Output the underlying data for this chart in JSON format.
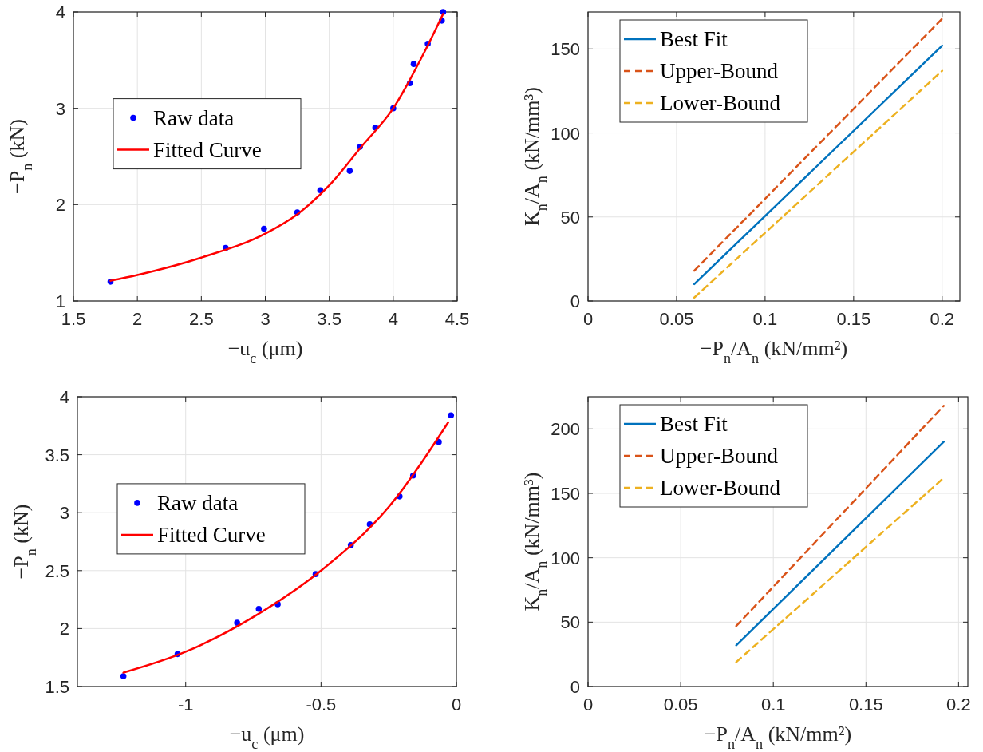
{
  "chart_data": [
    {
      "type": "scatter",
      "xlabel": "−u$_{c}$ (μm)",
      "ylabel": "−P$_{n}$ (kN)",
      "xlim": [
        1.5,
        4.5
      ],
      "ylim": [
        1,
        4
      ],
      "xticks": [
        1.5,
        2,
        2.5,
        3,
        3.5,
        4,
        4.5
      ],
      "yticks": [
        1,
        2,
        3,
        4
      ],
      "grid": true,
      "legend": "left",
      "series": [
        {
          "name": "Raw data",
          "marker": "circle",
          "color": "#0000ff",
          "x": [
            1.79,
            2.69,
            2.99,
            3.25,
            3.43,
            3.66,
            3.74,
            3.86,
            4.0,
            4.13,
            4.16,
            4.27,
            4.38,
            4.39
          ],
          "values": [
            1.2,
            1.55,
            1.75,
            1.92,
            2.15,
            2.35,
            2.6,
            2.8,
            3.0,
            3.26,
            3.46,
            3.67,
            3.91,
            4.0
          ]
        },
        {
          "name": "Fitted Curve",
          "type": "line",
          "line_style": "solid",
          "color": "#ff0000",
          "x": [
            1.79,
            2.0,
            2.5,
            3.0,
            3.25,
            3.5,
            3.75,
            4.0,
            4.25,
            4.39
          ],
          "values": [
            1.21,
            1.27,
            1.45,
            1.7,
            1.9,
            2.2,
            2.6,
            3.0,
            3.6,
            3.98
          ]
        }
      ]
    },
    {
      "type": "line",
      "xlabel": "−P$_{n}$/A$_{n}$ (kN/mm²)",
      "ylabel": "K$_{n}$/A$_{n}$ (kN/mm³)",
      "xlim": [
        0,
        0.21
      ],
      "ylim": [
        0,
        172
      ],
      "xticks": [
        0,
        0.05,
        0.1,
        0.15,
        0.2
      ],
      "yticks": [
        0,
        50,
        100,
        150
      ],
      "grid": true,
      "legend": "top left",
      "series": [
        {
          "name": "Best Fit",
          "line_style": "solid",
          "color": "#0072bd",
          "x": [
            0.06,
            0.2
          ],
          "values": [
            10,
            152
          ]
        },
        {
          "name": "Upper-Bound",
          "line_style": "dashed",
          "color": "#d95319",
          "x": [
            0.06,
            0.2
          ],
          "values": [
            18,
            168
          ]
        },
        {
          "name": "Lower-Bound",
          "line_style": "dashed",
          "color": "#edb120",
          "x": [
            0.06,
            0.2
          ],
          "values": [
            2,
            137
          ]
        }
      ]
    },
    {
      "type": "scatter",
      "xlabel": "−u$_{c}$ (μm)",
      "ylabel": "−P$_{n}$ (kN)",
      "xlim": [
        -1.4,
        0
      ],
      "ylim": [
        1.5,
        4
      ],
      "xticks": [
        -1,
        -0.5,
        0
      ],
      "yticks": [
        1.5,
        2,
        2.5,
        3,
        3.5,
        4
      ],
      "grid": true,
      "legend": "left",
      "series": [
        {
          "name": "Raw data",
          "marker": "circle",
          "color": "#0000ff",
          "x": [
            -1.23,
            -1.03,
            -0.81,
            -0.73,
            -0.66,
            -0.52,
            -0.39,
            -0.32,
            -0.21,
            -0.16,
            -0.065,
            -0.02
          ],
          "values": [
            1.59,
            1.78,
            2.05,
            2.17,
            2.21,
            2.47,
            2.72,
            2.9,
            3.14,
            3.32,
            3.61,
            3.84
          ]
        },
        {
          "name": "Fitted Curve",
          "type": "line",
          "line_style": "solid",
          "color": "#ff0000",
          "x": [
            -1.23,
            -1.0,
            -0.75,
            -0.5,
            -0.25,
            -0.03
          ],
          "values": [
            1.62,
            1.8,
            2.1,
            2.5,
            3.05,
            3.78
          ]
        }
      ]
    },
    {
      "type": "line",
      "xlabel": "−P$_{n}$/A$_{n}$ (kN/mm²)",
      "ylabel": "K$_{n}$/A$_{n}$ (kN/mm³)",
      "xlim": [
        0,
        0.205
      ],
      "ylim": [
        0,
        225
      ],
      "xticks": [
        0,
        0.05,
        0.1,
        0.15,
        0.2
      ],
      "yticks": [
        0,
        50,
        100,
        150,
        200
      ],
      "grid": true,
      "legend": "top left",
      "series": [
        {
          "name": "Best Fit",
          "line_style": "solid",
          "color": "#0072bd",
          "x": [
            0.08,
            0.192
          ],
          "values": [
            32,
            190
          ]
        },
        {
          "name": "Upper-Bound",
          "line_style": "dashed",
          "color": "#d95319",
          "x": [
            0.08,
            0.192
          ],
          "values": [
            47,
            218
          ]
        },
        {
          "name": "Lower-Bound",
          "line_style": "dashed",
          "color": "#edb120",
          "x": [
            0.08,
            0.192
          ],
          "values": [
            19,
            162
          ]
        }
      ]
    }
  ]
}
